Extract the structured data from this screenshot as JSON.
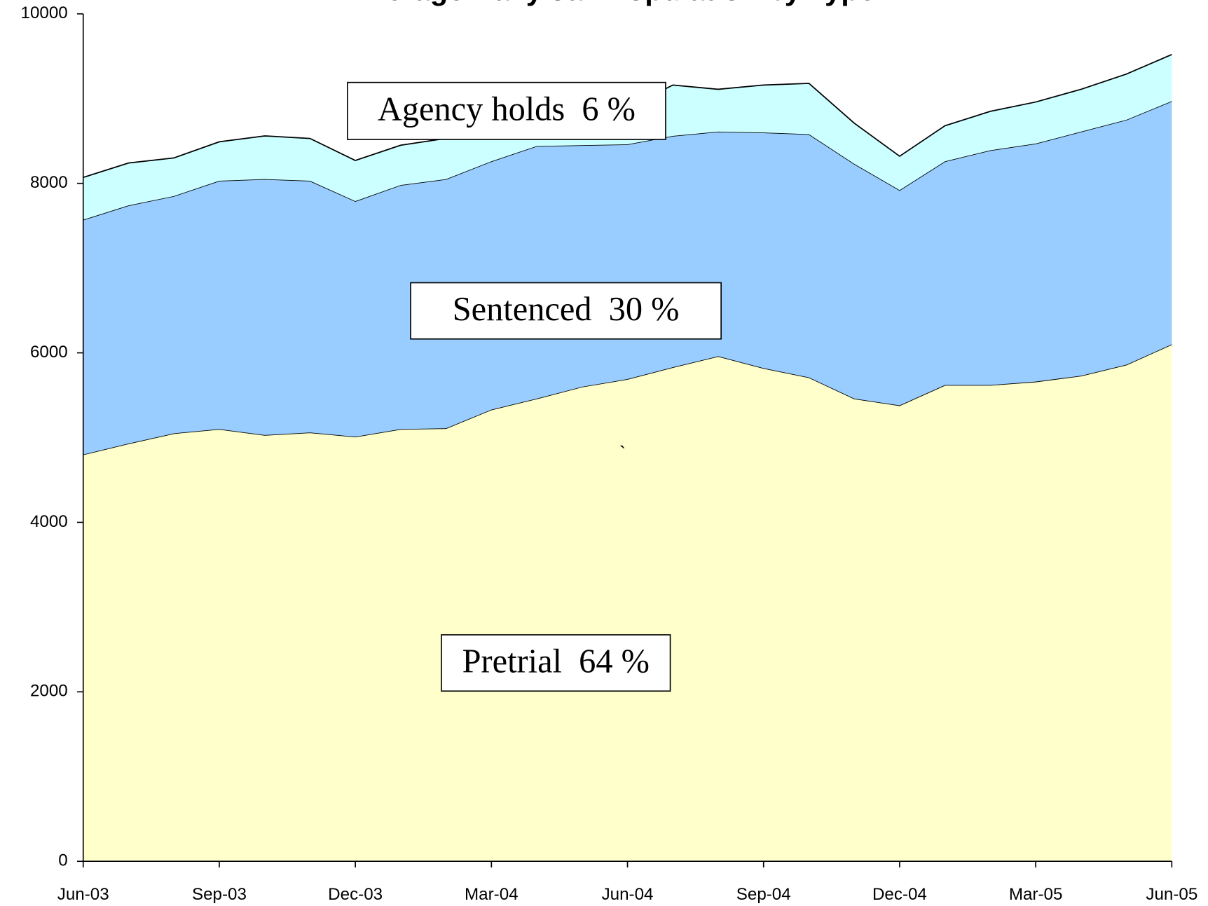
{
  "chart_data": {
    "type": "stacked_area",
    "title": "Average Daily Jail Population by Type",
    "categories": [
      "Jun-03",
      null,
      null,
      "Sep-03",
      null,
      null,
      "Dec-03",
      null,
      null,
      "Mar-04",
      null,
      null,
      "Jun-04",
      null,
      null,
      "Sep-04",
      null,
      null,
      "Dec-04",
      null,
      null,
      "Mar-05",
      null,
      null,
      "Jun-05"
    ],
    "series": [
      {
        "label": "Pretrial  64 %",
        "color": "#FFFFCC",
        "values": [
          4800,
          4930,
          5050,
          5100,
          5030,
          5060,
          5010,
          5100,
          5110,
          5330,
          5460,
          5600,
          5690,
          5830,
          5960,
          5820,
          5710,
          5460,
          5380,
          5620,
          5620,
          5660,
          5730,
          5860,
          6100
        ]
      },
      {
        "label": "Sentenced  30 %",
        "color": "#99CCFF",
        "values": [
          2770,
          2810,
          2800,
          2930,
          3020,
          2970,
          2780,
          2880,
          2940,
          2930,
          2980,
          2850,
          2770,
          2730,
          2650,
          2780,
          2870,
          2770,
          2540,
          2640,
          2770,
          2810,
          2880,
          2890,
          2870
        ]
      },
      {
        "label": "Agency holds  6 %",
        "color": "#CCFFFF",
        "values": [
          500,
          500,
          450,
          460,
          510,
          500,
          480,
          470,
          480,
          360,
          270,
          350,
          430,
          600,
          500,
          560,
          600,
          480,
          400,
          420,
          460,
          490,
          500,
          540,
          550
        ]
      }
    ],
    "stray_mark": "`",
    "ylim": [
      0,
      10000
    ],
    "yticks": [
      0,
      2000,
      4000,
      6000,
      8000,
      10000
    ]
  }
}
